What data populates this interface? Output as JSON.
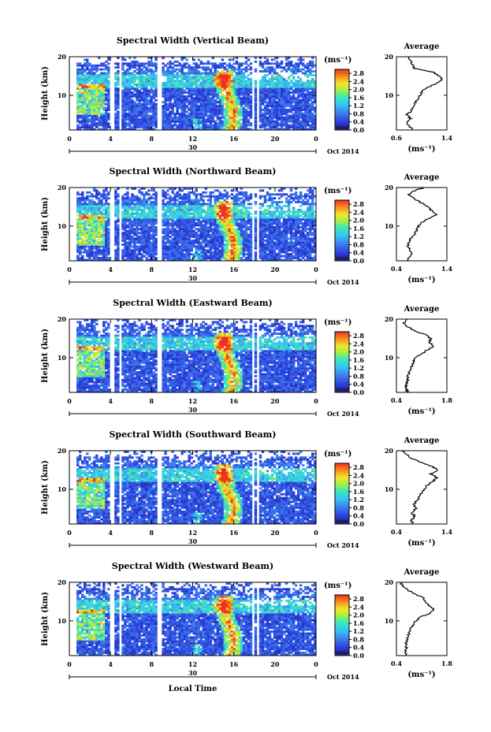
{
  "chart_data": [
    {
      "type": "heatmap",
      "title": "Spectral Width (Vertical Beam)",
      "ylabel": "Height (km)",
      "x_ticks": [
        "0",
        "4",
        "8",
        "12",
        "16",
        "20",
        "0"
      ],
      "y_ticks": [
        "10",
        "20"
      ],
      "date_marker": "30",
      "date_label": "Oct 2014",
      "xlim": [
        0,
        24
      ],
      "ylim": [
        1,
        20
      ],
      "colorbar": {
        "unit": "(ms⁻¹)",
        "ticks": [
          "0.0",
          "0.4",
          "0.8",
          "1.2",
          "1.6",
          "2.0",
          "2.4",
          "2.8"
        ],
        "range": [
          0,
          3.0
        ]
      },
      "gaps_hours": [
        [
          3.9,
          4.3
        ],
        [
          4.8,
          5.1
        ],
        [
          8.5,
          9.0
        ],
        [
          17.8,
          18.0
        ],
        [
          18.3,
          18.5
        ]
      ],
      "high_width_plume_hours": [
        14.5,
        16.5
      ],
      "profile": {
        "title": "Average",
        "xlabel": "(ms⁻¹)",
        "x_ticks": [
          "0.6",
          "1.4"
        ],
        "xlim": [
          0.6,
          1.4
        ],
        "y_ticks": [
          "10",
          "20"
        ],
        "ylim": [
          1,
          20
        ],
        "height_km": [
          1,
          2,
          3,
          4,
          5,
          6,
          7,
          8,
          9,
          10,
          11,
          12,
          13,
          14,
          15,
          16,
          17,
          18,
          19,
          20
        ],
        "width_ms": [
          0.86,
          0.8,
          0.76,
          0.82,
          0.77,
          0.84,
          0.86,
          0.9,
          0.94,
          0.97,
          1.0,
          1.08,
          1.22,
          1.33,
          1.28,
          1.18,
          0.88,
          0.85,
          0.82,
          0.8
        ]
      }
    },
    {
      "type": "heatmap",
      "title": "Spectral Width (Northward Beam)",
      "ylabel": "Height (km)",
      "x_ticks": [
        "0",
        "4",
        "8",
        "12",
        "16",
        "20",
        "0"
      ],
      "y_ticks": [
        "10",
        "20"
      ],
      "date_marker": "30",
      "date_label": "Oct 2014",
      "xlim": [
        0,
        24
      ],
      "ylim": [
        1,
        20
      ],
      "colorbar": {
        "unit": "(ms⁻¹)",
        "ticks": [
          "0.0",
          "0.4",
          "0.8",
          "1.2",
          "1.6",
          "2.0",
          "2.4",
          "2.8"
        ],
        "range": [
          0,
          3.0
        ]
      },
      "gaps_hours": [
        [
          3.9,
          4.3
        ],
        [
          4.8,
          5.1
        ],
        [
          8.5,
          9.0
        ],
        [
          17.8,
          18.0
        ],
        [
          18.3,
          18.5
        ]
      ],
      "high_width_plume_hours": [
        14.5,
        16.5
      ],
      "profile": {
        "title": "Average",
        "xlabel": "(ms⁻¹)",
        "x_ticks": [
          "0.4",
          "1.4"
        ],
        "xlim": [
          0.4,
          1.4
        ],
        "y_ticks": [
          "10",
          "20"
        ],
        "ylim": [
          1,
          20
        ],
        "height_km": [
          1,
          2,
          3,
          4,
          5,
          6,
          7,
          8,
          9,
          10,
          11,
          12,
          13,
          14,
          15,
          16,
          17,
          18,
          19,
          20
        ],
        "width_ms": [
          0.62,
          0.66,
          0.72,
          0.66,
          0.62,
          0.66,
          0.7,
          0.76,
          0.8,
          0.84,
          0.9,
          1.05,
          1.18,
          1.1,
          1.02,
          0.9,
          0.76,
          0.64,
          0.72,
          0.95
        ]
      }
    },
    {
      "type": "heatmap",
      "title": "Spectral Width (Eastward Beam)",
      "ylabel": "Height (km)",
      "x_ticks": [
        "0",
        "4",
        "8",
        "12",
        "16",
        "20",
        "0"
      ],
      "y_ticks": [
        "10",
        "20"
      ],
      "date_marker": "30",
      "date_label": "Oct 2014",
      "xlim": [
        0,
        24
      ],
      "ylim": [
        1,
        20
      ],
      "colorbar": {
        "unit": "(ms⁻¹)",
        "ticks": [
          "0.0",
          "0.4",
          "0.8",
          "1.2",
          "1.6",
          "2.0",
          "2.4",
          "2.8"
        ],
        "range": [
          0,
          3.0
        ]
      },
      "gaps_hours": [
        [
          3.9,
          4.3
        ],
        [
          4.8,
          5.1
        ],
        [
          8.5,
          9.0
        ],
        [
          17.8,
          18.0
        ],
        [
          18.3,
          18.5
        ]
      ],
      "high_width_plume_hours": [
        14.5,
        16.5
      ],
      "profile": {
        "title": "Average",
        "xlabel": "(ms⁻¹)",
        "x_ticks": [
          "0.4",
          "1.8"
        ],
        "xlim": [
          0.4,
          1.8
        ],
        "y_ticks": [
          "10",
          "20"
        ],
        "ylim": [
          1,
          20
        ],
        "height_km": [
          1,
          2,
          3,
          4,
          5,
          6,
          7,
          8,
          9,
          10,
          11,
          12,
          13,
          14,
          15,
          16,
          17,
          18,
          19,
          20
        ],
        "width_ms": [
          0.7,
          0.68,
          0.66,
          0.72,
          0.7,
          0.74,
          0.78,
          0.84,
          0.88,
          0.92,
          1.1,
          1.25,
          1.45,
          1.3,
          1.35,
          1.2,
          0.88,
          0.72,
          0.6,
          0.7
        ]
      }
    },
    {
      "type": "heatmap",
      "title": "Spectral Width (Southward Beam)",
      "ylabel": "Height (km)",
      "x_ticks": [
        "0",
        "4",
        "8",
        "12",
        "16",
        "20",
        "0"
      ],
      "y_ticks": [
        "10",
        "20"
      ],
      "date_marker": "30",
      "date_label": "Oct 2014",
      "xlim": [
        0,
        24
      ],
      "ylim": [
        1,
        20
      ],
      "colorbar": {
        "unit": "(ms⁻¹)",
        "ticks": [
          "0.0",
          "0.4",
          "0.8",
          "1.2",
          "1.6",
          "2.0",
          "2.4",
          "2.8"
        ],
        "range": [
          0,
          3.0
        ]
      },
      "gaps_hours": [
        [
          3.9,
          4.3
        ],
        [
          4.8,
          5.1
        ],
        [
          8.5,
          9.0
        ],
        [
          17.8,
          18.0
        ],
        [
          18.3,
          18.5
        ]
      ],
      "high_width_plume_hours": [
        14.5,
        16.5
      ],
      "profile": {
        "title": "Average",
        "xlabel": "(ms⁻¹)",
        "x_ticks": [
          "0.4",
          "1.4"
        ],
        "xlim": [
          0.4,
          1.4
        ],
        "y_ticks": [
          "10",
          "20"
        ],
        "ylim": [
          1,
          20
        ],
        "height_km": [
          1,
          2,
          3,
          4,
          5,
          6,
          7,
          8,
          9,
          10,
          11,
          12,
          13,
          14,
          15,
          16,
          17,
          18,
          19,
          20
        ],
        "width_ms": [
          0.72,
          0.7,
          0.76,
          0.7,
          0.78,
          0.74,
          0.8,
          0.86,
          0.9,
          0.95,
          1.0,
          1.12,
          1.2,
          1.08,
          1.22,
          1.1,
          0.88,
          0.7,
          0.6,
          0.52
        ]
      }
    },
    {
      "type": "heatmap",
      "title": "Spectral Width (Westward Beam)",
      "ylabel": "Height (km)",
      "x_ticks": [
        "0",
        "4",
        "8",
        "12",
        "16",
        "20",
        "0"
      ],
      "y_ticks": [
        "10",
        "20"
      ],
      "date_marker": "30",
      "date_label": "Oct 2014",
      "xlabel": "Local Time",
      "xlim": [
        0,
        24
      ],
      "ylim": [
        1,
        20
      ],
      "colorbar": {
        "unit": "(ms⁻¹)",
        "ticks": [
          "0.0",
          "0.4",
          "0.8",
          "1.2",
          "1.6",
          "2.0",
          "2.4",
          "2.8"
        ],
        "range": [
          0,
          3.0
        ]
      },
      "gaps_hours": [
        [
          3.9,
          4.3
        ],
        [
          4.8,
          5.1
        ],
        [
          8.5,
          9.0
        ],
        [
          17.8,
          18.0
        ],
        [
          18.3,
          18.5
        ]
      ],
      "high_width_plume_hours": [
        14.5,
        16.5
      ],
      "profile": {
        "title": "Average",
        "xlabel": "(ms⁻¹)",
        "x_ticks": [
          "0.4",
          "1.8"
        ],
        "xlim": [
          0.4,
          1.8
        ],
        "y_ticks": [
          "10",
          "20"
        ],
        "ylim": [
          1,
          20
        ],
        "height_km": [
          1,
          2,
          3,
          4,
          5,
          6,
          7,
          8,
          9,
          10,
          11,
          12,
          13,
          14,
          15,
          16,
          17,
          18,
          19,
          20
        ],
        "width_ms": [
          0.66,
          0.64,
          0.68,
          0.66,
          0.7,
          0.72,
          0.76,
          0.8,
          0.86,
          0.94,
          1.05,
          1.35,
          1.45,
          1.3,
          1.2,
          1.15,
          0.9,
          0.72,
          0.6,
          0.5
        ]
      }
    }
  ]
}
